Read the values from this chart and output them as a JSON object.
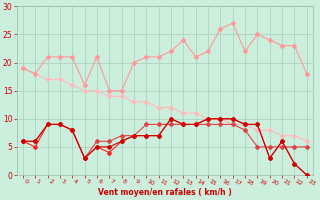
{
  "x": [
    0,
    1,
    2,
    3,
    4,
    5,
    6,
    7,
    8,
    9,
    10,
    11,
    12,
    13,
    14,
    15,
    16,
    17,
    18,
    19,
    20,
    21,
    22,
    23
  ],
  "line_diag": [
    19,
    18,
    17,
    17,
    16,
    15,
    15,
    14,
    14,
    13,
    13,
    12,
    12,
    11,
    11,
    10,
    10,
    9,
    9,
    8,
    8,
    7,
    7,
    6
  ],
  "line_top": [
    19,
    18,
    21,
    21,
    21,
    16,
    21,
    15,
    15,
    20,
    21,
    21,
    22,
    24,
    21,
    22,
    26,
    27,
    22,
    25,
    24,
    23,
    23,
    18
  ],
  "line_mid_dk": [
    6,
    6,
    9,
    9,
    8,
    3,
    5,
    5,
    6,
    7,
    7,
    7,
    10,
    9,
    9,
    10,
    10,
    10,
    9,
    9,
    3,
    6,
    2,
    0
  ],
  "line_mid_br": [
    6,
    5,
    9,
    9,
    8,
    3,
    5,
    4,
    6,
    7,
    7,
    7,
    10,
    9,
    9,
    10,
    10,
    10,
    9,
    9,
    3,
    6,
    2,
    0
  ],
  "line_flat": [
    6,
    6,
    9,
    9,
    8,
    3,
    6,
    6,
    7,
    7,
    9,
    9,
    9,
    9,
    9,
    9,
    9,
    9,
    8,
    5,
    5,
    5,
    5,
    5
  ],
  "bg_color": "#cceedd",
  "grid_color": "#aaccbb",
  "c_diag": "#ffbbbb",
  "c_top": "#ff9999",
  "c_mid_dk": "#cc0000",
  "c_mid_br": "#ff2222",
  "c_flat": "#dd4444",
  "xlabel": "Vent moyen/en rafales ( km/h )",
  "ylim": [
    0,
    30
  ],
  "xlim": [
    -0.5,
    23.5
  ],
  "yticks": [
    0,
    5,
    10,
    15,
    20,
    25,
    30
  ],
  "xticks": [
    0,
    1,
    2,
    3,
    4,
    5,
    6,
    7,
    8,
    9,
    10,
    11,
    12,
    13,
    14,
    15,
    16,
    17,
    18,
    19,
    20,
    21,
    22,
    23
  ]
}
